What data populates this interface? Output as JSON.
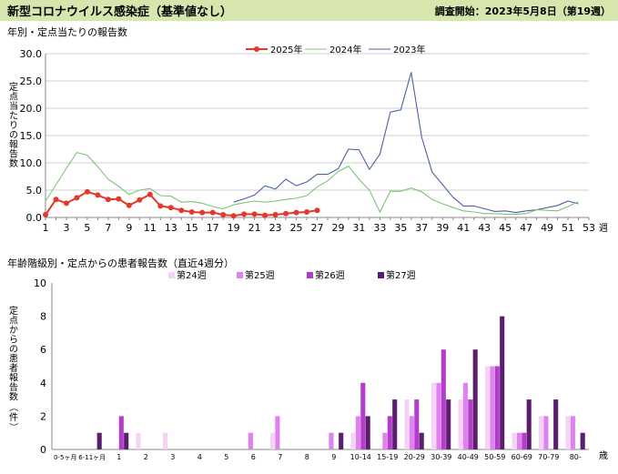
{
  "header": {
    "title": "新型コロナウイルス感染症（基準値なし）",
    "survey_start": "調査開始：2023年5月8日（第19週）"
  },
  "chart_data": [
    {
      "type": "line",
      "title": "年別・定点当たりの報告数",
      "ylabel": "定点当たりの報告数",
      "xunit": "週",
      "ylim": [
        0,
        30
      ],
      "yticks": [
        0,
        5,
        10,
        15,
        20,
        25,
        30
      ],
      "xlim": [
        1,
        53
      ],
      "xticks": [
        1,
        3,
        5,
        7,
        9,
        11,
        13,
        15,
        17,
        19,
        21,
        23,
        25,
        27,
        29,
        31,
        33,
        35,
        37,
        39,
        41,
        43,
        45,
        47,
        49,
        51,
        53
      ],
      "legend_position": "top-center",
      "series": [
        {
          "name": "2025年",
          "color": "#e2392a",
          "marker": true,
          "x": [
            1,
            2,
            3,
            4,
            5,
            6,
            7,
            8,
            9,
            10,
            11,
            12,
            13,
            14,
            15,
            16,
            17,
            18,
            19,
            20,
            21,
            22,
            23,
            24,
            25,
            26,
            27
          ],
          "values": [
            0.5,
            3.3,
            2.6,
            3.6,
            4.7,
            4.1,
            3.3,
            3.4,
            2.2,
            3.2,
            4.2,
            2.1,
            1.8,
            1.3,
            1.0,
            0.9,
            0.9,
            0.5,
            0.3,
            0.6,
            0.6,
            0.4,
            0.5,
            0.7,
            0.9,
            1.0,
            1.3
          ]
        },
        {
          "name": "2024年",
          "color": "#7cc576",
          "marker": false,
          "x": [
            1,
            2,
            3,
            4,
            5,
            6,
            7,
            8,
            9,
            10,
            11,
            12,
            13,
            14,
            15,
            16,
            17,
            18,
            19,
            20,
            21,
            22,
            23,
            24,
            25,
            26,
            27,
            28,
            29,
            30,
            31,
            32,
            33,
            34,
            35,
            36,
            37,
            38,
            39,
            40,
            41,
            42,
            43,
            44,
            45,
            46,
            47,
            48,
            49,
            50,
            51,
            52
          ],
          "values": [
            3.0,
            6.0,
            9.0,
            11.9,
            11.4,
            9.3,
            7.0,
            5.7,
            4.2,
            5.0,
            5.3,
            4.0,
            3.9,
            2.8,
            2.9,
            2.6,
            2.0,
            1.6,
            2.3,
            2.7,
            3.0,
            2.8,
            3.0,
            3.3,
            3.5,
            4.0,
            5.6,
            6.7,
            8.4,
            9.4,
            7.0,
            5.0,
            1.0,
            4.8,
            4.8,
            5.4,
            4.7,
            3.3,
            2.5,
            1.8,
            1.2,
            1.0,
            0.7,
            0.7,
            0.6,
            0.6,
            0.7,
            1.4,
            1.3,
            1.2,
            2.0,
            2.9
          ]
        },
        {
          "name": "2023年",
          "color": "#4e5fa6",
          "marker": false,
          "x": [
            19,
            20,
            21,
            22,
            23,
            24,
            25,
            26,
            27,
            28,
            29,
            30,
            31,
            32,
            33,
            34,
            35,
            36,
            37,
            38,
            39,
            40,
            41,
            42,
            43,
            44,
            45,
            46,
            47,
            48,
            49,
            50,
            51,
            52
          ],
          "values": [
            2.8,
            3.4,
            4.1,
            5.8,
            5.2,
            7.0,
            5.8,
            6.5,
            7.9,
            7.9,
            8.9,
            12.5,
            12.4,
            8.8,
            11.6,
            19.3,
            19.7,
            26.6,
            14.7,
            8.3,
            6.0,
            3.7,
            2.1,
            2.1,
            1.6,
            1.1,
            1.2,
            0.9,
            1.2,
            1.4,
            1.8,
            2.2,
            3.0,
            2.5
          ]
        }
      ]
    },
    {
      "type": "bar",
      "title": "年齢階級別・定点からの患者報告数（直近4週分）",
      "ylabel": "定点からの患者報告数",
      "yunit": "（件）",
      "xunit": "歳",
      "ylim": [
        0,
        10
      ],
      "yticks": [
        0,
        2,
        4,
        6,
        8,
        10
      ],
      "legend_position": "top-center",
      "categories": [
        "0-5ヶ月",
        "6-11ヶ月",
        "1",
        "2",
        "3",
        "4",
        "5",
        "6",
        "7",
        "8",
        "9",
        "10-14",
        "15-19",
        "20-29",
        "30-39",
        "40-49",
        "50-59",
        "60-69",
        "70-79",
        "80-"
      ],
      "series": [
        {
          "name": "第24週",
          "color": "#f5d3f5",
          "values": [
            0,
            0,
            0,
            1,
            1,
            0,
            0,
            0,
            1,
            0,
            0,
            1,
            0,
            3,
            4,
            3,
            5,
            1,
            2,
            2
          ]
        },
        {
          "name": "第25週",
          "color": "#df82ef",
          "values": [
            0,
            0,
            0,
            0,
            0,
            0,
            0,
            1,
            2,
            0,
            1,
            2,
            1,
            2,
            4,
            4,
            5,
            1,
            2,
            2
          ]
        },
        {
          "name": "第26週",
          "color": "#b33cc9",
          "values": [
            0,
            0,
            2,
            0,
            0,
            0,
            0,
            0,
            0,
            0,
            0,
            4,
            2,
            3,
            6,
            3,
            5,
            1,
            0,
            0
          ]
        },
        {
          "name": "第27週",
          "color": "#5b1d6e",
          "values": [
            0,
            1,
            1,
            0,
            0,
            0,
            0,
            0,
            0,
            0,
            1,
            2,
            3,
            1,
            3,
            6,
            8,
            3,
            3,
            1
          ]
        }
      ]
    }
  ]
}
